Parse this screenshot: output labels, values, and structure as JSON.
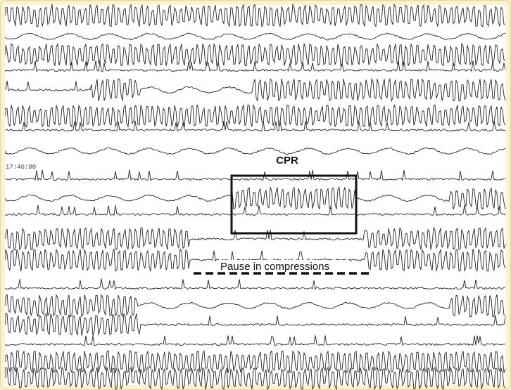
{
  "annotations": {
    "cpr": "CPR",
    "pause": "Pause in compressions",
    "timestamp": "17:46:00"
  }
}
